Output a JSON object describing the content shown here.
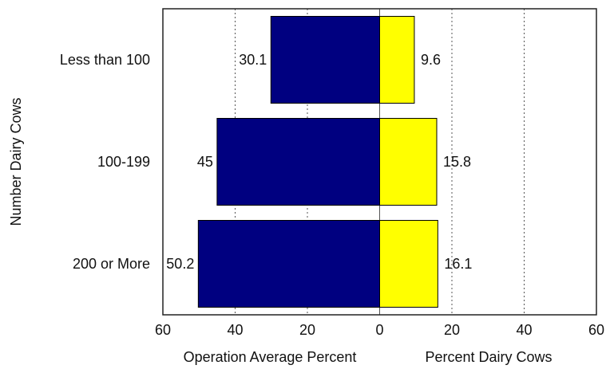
{
  "chart_data": {
    "type": "bar",
    "orientation": "horizontal-diverging",
    "categories": [
      "Less than 100",
      "100-199",
      "200 or More"
    ],
    "series": [
      {
        "name": "Operation Average Percent",
        "direction": "left",
        "color": "#000080",
        "values": [
          30.1,
          45,
          50.2
        ]
      },
      {
        "name": "Percent Dairy Cows",
        "direction": "right",
        "color": "#ffff00",
        "values": [
          9.6,
          15.8,
          16.1
        ]
      }
    ],
    "value_labels": {
      "left": [
        "30.1",
        "45",
        "50.2"
      ],
      "right": [
        "9.6",
        "15.8",
        "16.1"
      ]
    },
    "xlim": [
      -60,
      60
    ],
    "x_ticks": [
      -60,
      -40,
      -20,
      0,
      20,
      40,
      60
    ],
    "x_tick_labels": [
      "60",
      "40",
      "20",
      "0",
      "20",
      "40",
      "60"
    ],
    "xlabel_left": "Operation Average Percent",
    "xlabel_right": "Percent Dairy Cows",
    "ylabel": "Number Dairy Cows",
    "grid": "vertical-dotted"
  }
}
